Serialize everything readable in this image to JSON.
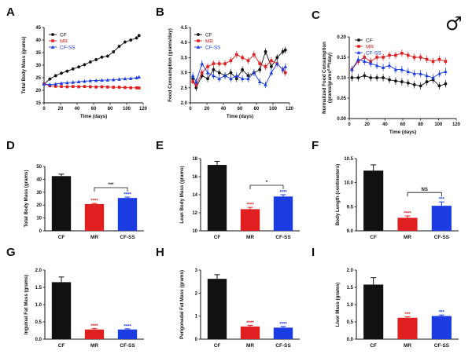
{
  "figure": {
    "sex_symbol": "♂",
    "colors": {
      "CF": "#111111",
      "MR": "#e02020",
      "CF-SS": "#1a3ce0"
    }
  },
  "chart_data": [
    {
      "panel": "A",
      "type": "line",
      "xlabel": "Time (days)",
      "ylabel": "Total Body Mass (grams)",
      "xlim": [
        0,
        120
      ],
      "ylim": [
        15,
        45
      ],
      "xticks": [
        0,
        20,
        40,
        60,
        80,
        100,
        120
      ],
      "yticks": [
        15,
        20,
        25,
        30,
        35,
        40,
        45
      ],
      "legend": {
        "position": "top-left",
        "entries": [
          "CF",
          "MR",
          "CF-SS"
        ]
      },
      "series": [
        {
          "name": "CF",
          "marker": "circle",
          "x": [
            0,
            7,
            14,
            21,
            28,
            35,
            42,
            49,
            56,
            63,
            70,
            77,
            84,
            91,
            98,
            105,
            112,
            115
          ],
          "y": [
            22.5,
            24.5,
            25.8,
            26.8,
            27.6,
            28.5,
            29.3,
            30.2,
            31.3,
            32.2,
            33.2,
            33.6,
            35.3,
            37.5,
            39.2,
            40.0,
            40.8,
            41.8
          ]
        },
        {
          "name": "MR",
          "marker": "square",
          "x": [
            0,
            7,
            14,
            21,
            28,
            35,
            42,
            49,
            56,
            63,
            70,
            77,
            84,
            91,
            98,
            105,
            112,
            115
          ],
          "y": [
            22.5,
            21.8,
            21.6,
            21.5,
            21.4,
            21.5,
            21.4,
            21.5,
            21.4,
            21.3,
            21.4,
            21.3,
            21.2,
            21.2,
            21.1,
            21.0,
            21.0,
            20.9
          ]
        },
        {
          "name": "CF-SS",
          "marker": "triangle",
          "x": [
            0,
            7,
            14,
            21,
            28,
            35,
            42,
            49,
            56,
            63,
            70,
            77,
            84,
            91,
            98,
            105,
            112,
            115
          ],
          "y": [
            22.5,
            22.3,
            22.5,
            22.8,
            23.0,
            23.2,
            23.4,
            23.6,
            23.8,
            23.9,
            24.0,
            24.1,
            24.2,
            24.4,
            24.6,
            24.7,
            25.0,
            25.3
          ]
        }
      ]
    },
    {
      "panel": "B",
      "type": "line",
      "xlabel": "Time (days)",
      "ylabel": "Food Consumption (grams/day)",
      "xlim": [
        0,
        120
      ],
      "ylim": [
        2.0,
        4.5
      ],
      "xticks": [
        0,
        20,
        40,
        60,
        80,
        100,
        120
      ],
      "yticks": [
        2.0,
        2.5,
        3.0,
        3.5,
        4.0,
        4.5
      ],
      "legend": {
        "position": "top-left",
        "entries": [
          "CF",
          "MR",
          "CF-SS"
        ]
      },
      "series": [
        {
          "name": "CF",
          "marker": "circle",
          "x": [
            3,
            7,
            14,
            21,
            28,
            35,
            42,
            49,
            56,
            63,
            70,
            77,
            84,
            91,
            98,
            105,
            112,
            115
          ],
          "y": [
            2.8,
            2.5,
            2.9,
            2.8,
            3.1,
            3.0,
            2.9,
            3.0,
            2.8,
            3.1,
            2.9,
            3.0,
            3.1,
            3.7,
            3.2,
            3.5,
            3.7,
            3.75
          ]
        },
        {
          "name": "MR",
          "marker": "square",
          "x": [
            3,
            7,
            14,
            21,
            28,
            35,
            42,
            49,
            56,
            63,
            70,
            77,
            84,
            91,
            98,
            105,
            112,
            115
          ],
          "y": [
            2.7,
            2.6,
            3.0,
            3.2,
            3.3,
            3.3,
            3.3,
            3.4,
            3.6,
            3.5,
            3.4,
            3.6,
            3.3,
            3.2,
            3.4,
            3.3,
            3.1,
            3.0
          ]
        },
        {
          "name": "CF-SS",
          "marker": "triangle",
          "x": [
            3,
            7,
            14,
            21,
            28,
            35,
            42,
            49,
            56,
            63,
            70,
            77,
            84,
            91,
            98,
            105,
            112,
            115
          ],
          "y": [
            2.9,
            2.7,
            3.3,
            3.0,
            2.9,
            2.8,
            2.9,
            2.8,
            2.9,
            2.8,
            2.8,
            3.0,
            2.7,
            2.6,
            3.0,
            3.3,
            3.1,
            3.2
          ]
        }
      ]
    },
    {
      "panel": "C",
      "type": "line",
      "xlabel": "Time (days)",
      "ylabel": "Normalized Food Consumption (grams/grams^0.66/day)",
      "ylabel_main": "Normalized Food Consumption",
      "ylabel_unit": "(grams/grams",
      "ylabel_exp": "0.66",
      "ylabel_tail": "/day)",
      "xlim": [
        0,
        120
      ],
      "ylim": [
        0.0,
        0.2
      ],
      "xticks": [
        0,
        20,
        40,
        60,
        80,
        100,
        120
      ],
      "yticks": [
        0.0,
        0.05,
        0.1,
        0.15,
        0.2
      ],
      "legend": {
        "position": "top-left",
        "entries": [
          "CF",
          "MR",
          "CF-SS"
        ]
      },
      "series": [
        {
          "name": "CF",
          "marker": "circle",
          "x": [
            3,
            10,
            17,
            24,
            31,
            38,
            45,
            52,
            59,
            66,
            73,
            80,
            87,
            94,
            101,
            108
          ],
          "y": [
            0.1,
            0.1,
            0.105,
            0.1,
            0.1,
            0.1,
            0.095,
            0.092,
            0.09,
            0.087,
            0.083,
            0.08,
            0.09,
            0.095,
            0.08,
            0.085
          ]
        },
        {
          "name": "MR",
          "marker": "square",
          "x": [
            3,
            10,
            17,
            24,
            31,
            38,
            45,
            52,
            59,
            66,
            73,
            80,
            87,
            94,
            101,
            108
          ],
          "y": [
            0.12,
            0.14,
            0.15,
            0.14,
            0.15,
            0.15,
            0.155,
            0.155,
            0.16,
            0.155,
            0.15,
            0.15,
            0.145,
            0.14,
            0.145,
            0.14
          ]
        },
        {
          "name": "CF-SS",
          "marker": "triangle",
          "x": [
            3,
            10,
            17,
            24,
            31,
            38,
            45,
            52,
            59,
            66,
            73,
            80,
            87,
            94,
            101,
            108
          ],
          "y": [
            0.12,
            0.145,
            0.14,
            0.135,
            0.13,
            0.125,
            0.13,
            0.12,
            0.12,
            0.115,
            0.11,
            0.11,
            0.105,
            0.1,
            0.11,
            0.115
          ]
        }
      ]
    },
    {
      "panel": "D",
      "type": "bar",
      "categories": [
        "CF",
        "MR",
        "CF-SS"
      ],
      "values": [
        42.5,
        20.8,
        25.5
      ],
      "errors": [
        1.5,
        0.5,
        0.7
      ],
      "ylabel": "Total Body Mass (grams)",
      "ylim": [
        0,
        50
      ],
      "yticks": [
        0,
        10,
        20,
        30,
        40,
        50
      ],
      "stars": [
        "",
        "****",
        "****"
      ],
      "bracket": {
        "from": "MR",
        "to": "CF-SS",
        "label": "***"
      }
    },
    {
      "panel": "E",
      "type": "bar",
      "categories": [
        "CF",
        "MR",
        "CF-SS"
      ],
      "values": [
        17.3,
        12.4,
        13.8
      ],
      "errors": [
        0.4,
        0.2,
        0.2
      ],
      "ylabel": "Lean Body Mass (grams)",
      "ylim": [
        10,
        18
      ],
      "yticks": [
        10,
        12,
        14,
        16,
        18
      ],
      "stars": [
        "",
        "****",
        "****"
      ],
      "bracket": {
        "from": "MR",
        "to": "CF-SS",
        "label": "*"
      }
    },
    {
      "panel": "F",
      "type": "bar",
      "categories": [
        "CF",
        "MR",
        "CF-SS"
      ],
      "values": [
        10.25,
        9.27,
        9.52
      ],
      "errors": [
        0.12,
        0.04,
        0.08
      ],
      "ylabel": "Body Length (centimeters)",
      "ylim": [
        9.0,
        10.5
      ],
      "yticks": [
        9.0,
        9.5,
        10.0,
        10.5
      ],
      "stars": [
        "",
        "****",
        "***"
      ],
      "bracket": {
        "from": "MR",
        "to": "CF-SS",
        "label": "NS"
      }
    },
    {
      "panel": "G",
      "type": "bar",
      "categories": [
        "CF",
        "MR",
        "CF-SS"
      ],
      "values": [
        1.65,
        0.28,
        0.28
      ],
      "errors": [
        0.15,
        0.03,
        0.02
      ],
      "ylabel": "Inguinal Fat Mass (grams)",
      "ylim": [
        0.0,
        2.0
      ],
      "yticks": [
        0.0,
        0.5,
        1.0,
        1.5,
        2.0
      ],
      "stars": [
        "",
        "****",
        "****"
      ]
    },
    {
      "panel": "H",
      "type": "bar",
      "categories": [
        "CF",
        "MR",
        "CF-SS"
      ],
      "values": [
        2.62,
        0.55,
        0.5
      ],
      "errors": [
        0.18,
        0.05,
        0.05
      ],
      "ylabel": "Perigonadal Fat Mass (grams)",
      "ylim": [
        0,
        3
      ],
      "yticks": [
        0,
        1,
        2,
        3
      ],
      "stars": [
        "",
        "****",
        "****"
      ]
    },
    {
      "panel": "I",
      "type": "bar",
      "categories": [
        "CF",
        "MR",
        "CF-SS"
      ],
      "values": [
        1.58,
        0.62,
        0.67
      ],
      "errors": [
        0.2,
        0.03,
        0.03
      ],
      "ylabel": "Liver Mass (grams)",
      "ylim": [
        0.0,
        2.0
      ],
      "yticks": [
        0.0,
        0.5,
        1.0,
        1.5,
        2.0
      ],
      "stars": [
        "",
        "***",
        "***"
      ]
    }
  ]
}
